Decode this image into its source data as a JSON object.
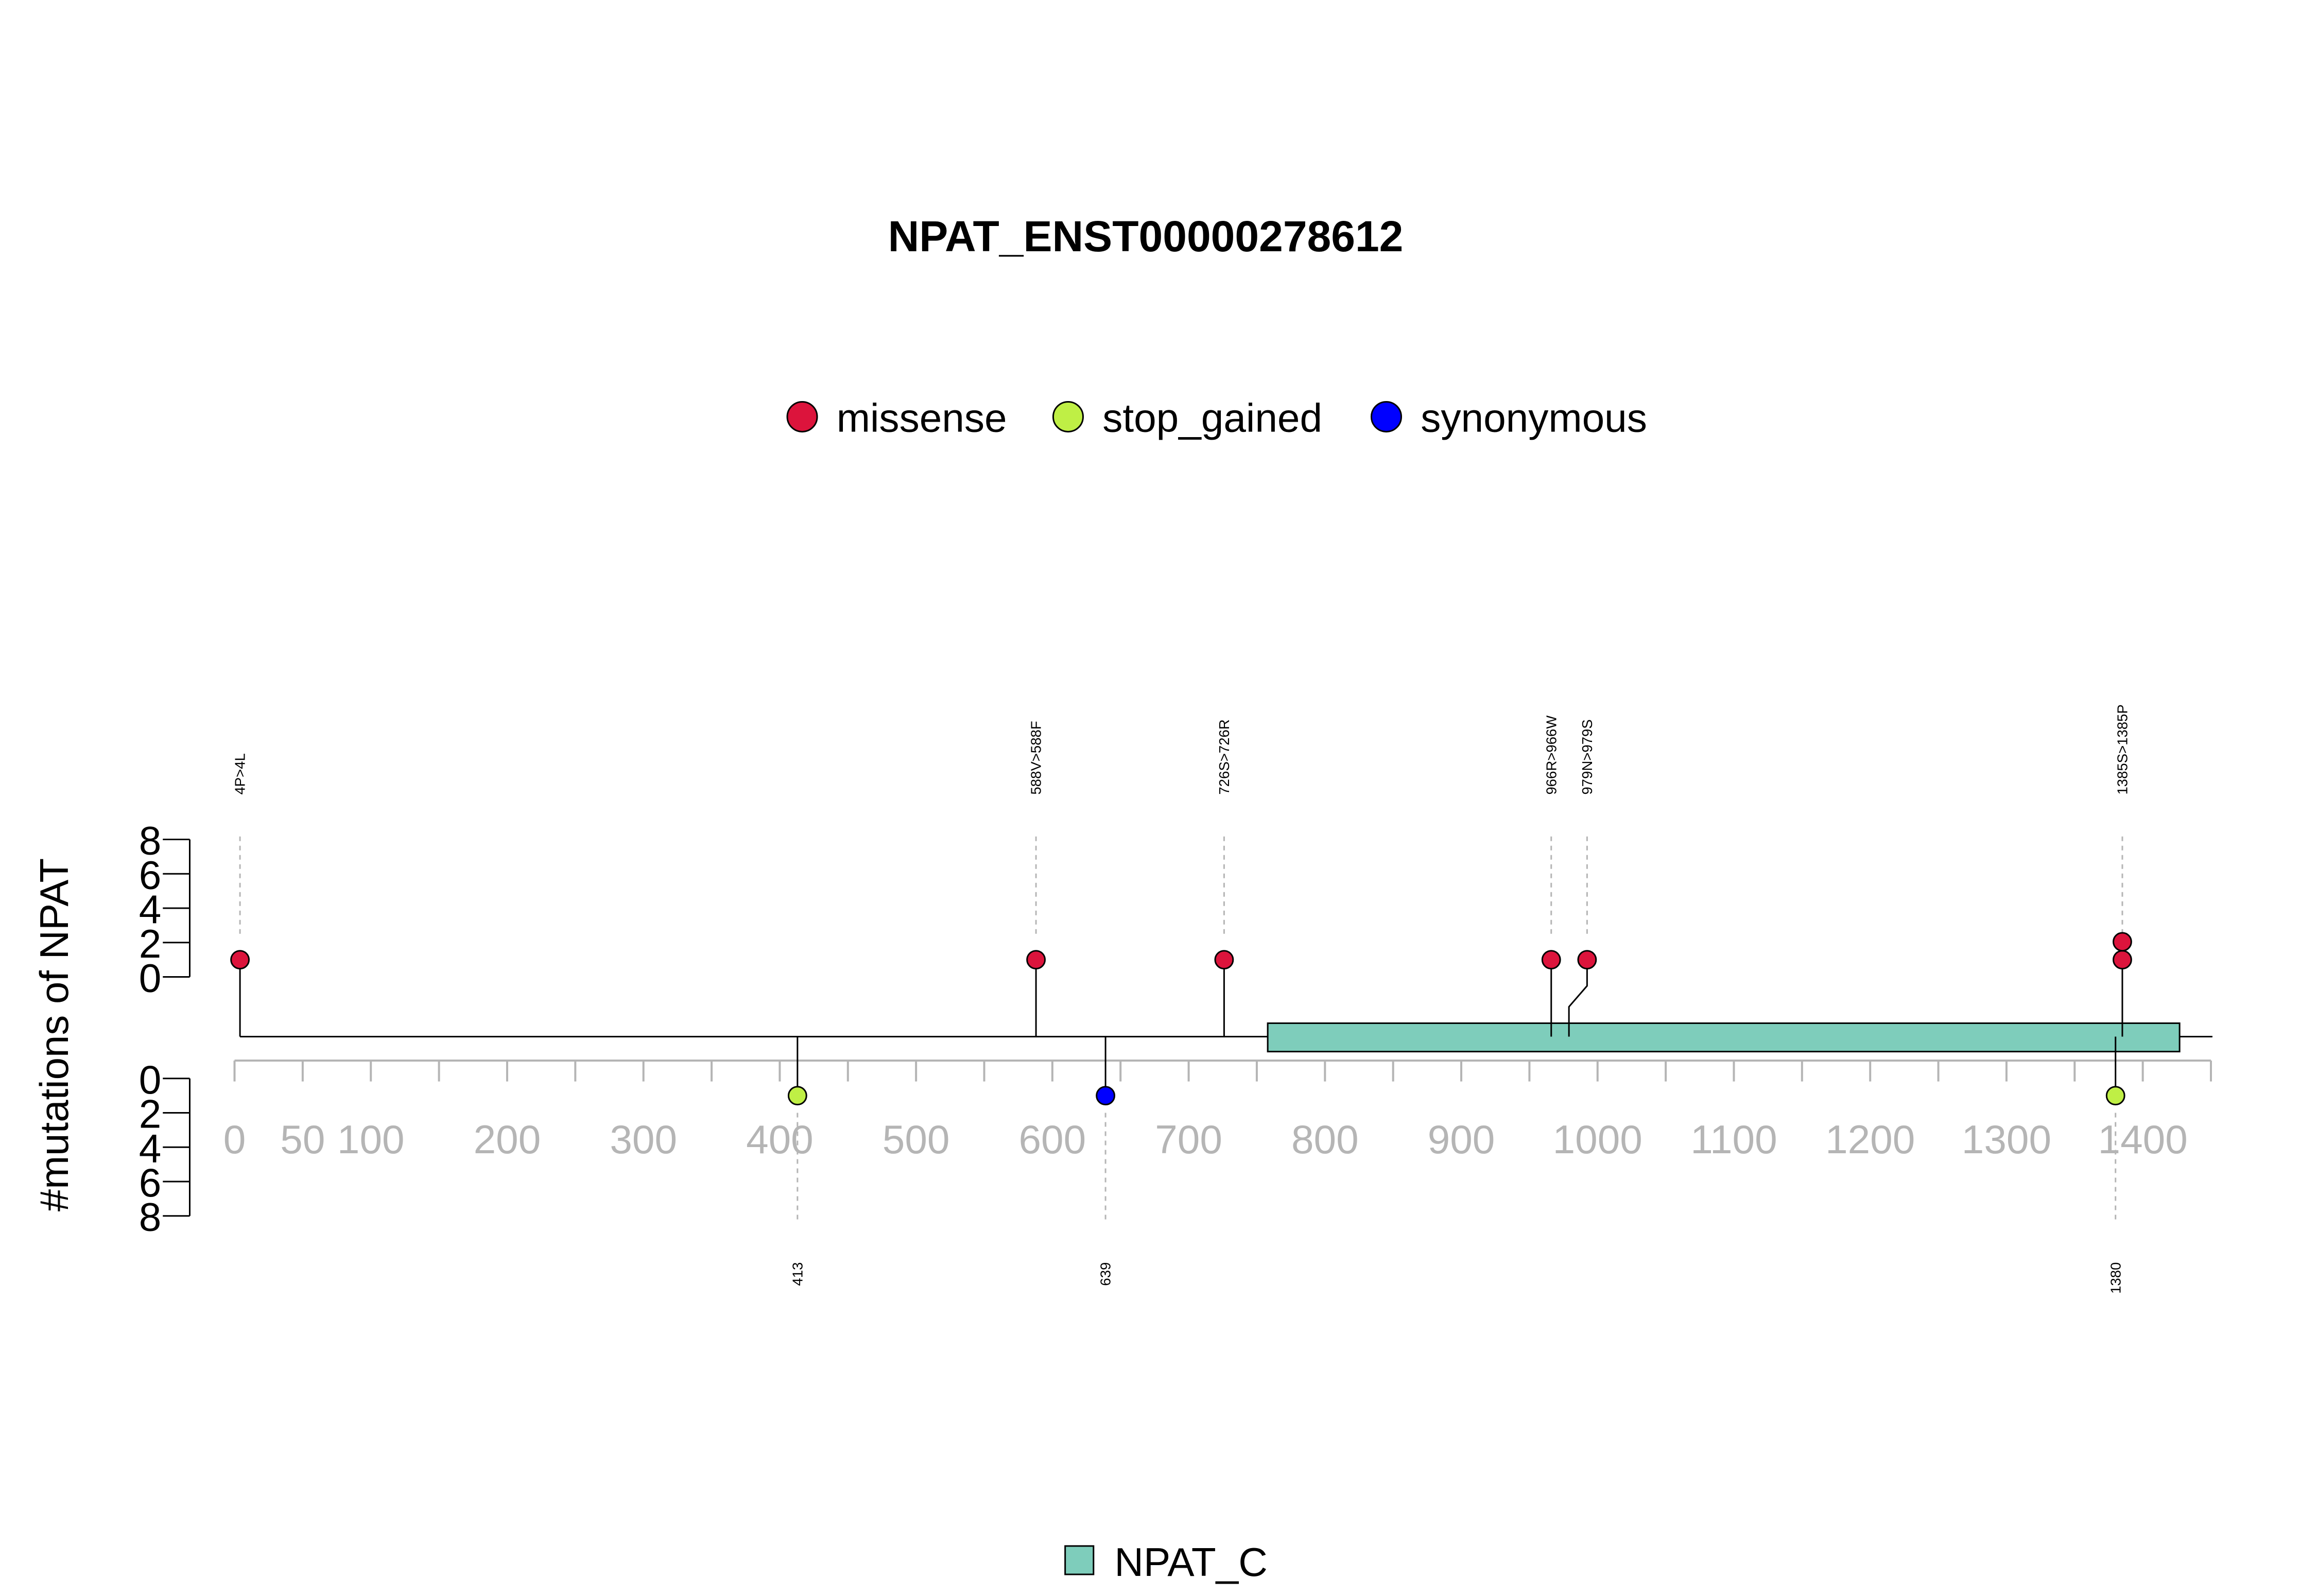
{
  "chart_data": {
    "type": "lollipop",
    "title": "NPAT_ENST00000278612",
    "ylabel": "#mutations of NPAT",
    "x_ticks": [
      0,
      50,
      100,
      200,
      300,
      400,
      500,
      600,
      700,
      800,
      900,
      1000,
      1100,
      1200,
      1300,
      1400
    ],
    "x_tick_labels": [
      "0",
      "50",
      "100",
      "200",
      "300",
      "400",
      "500",
      "600",
      "700",
      "800",
      "900",
      "1000",
      "1100",
      "1200",
      "1300",
      "1400"
    ],
    "x_minor_ticks": [
      0,
      50,
      100,
      150,
      200,
      250,
      300,
      350,
      400,
      450,
      500,
      550,
      600,
      650,
      700,
      750,
      800,
      850,
      900,
      950,
      1000,
      1050,
      1100,
      1150,
      1200,
      1250,
      1300,
      1350,
      1400,
      1450
    ],
    "xlim": [
      0,
      1450
    ],
    "y_ticks": [
      0,
      2,
      4,
      6,
      8
    ],
    "y_tick_labels": [
      "0",
      "2",
      "4",
      "6",
      "8"
    ],
    "ylim": [
      0,
      8
    ],
    "legend": [
      {
        "name": "missense",
        "color": "#DC143C"
      },
      {
        "name": "stop_gained",
        "color": "#BFEF45"
      },
      {
        "name": "synonymous",
        "color": "#0000FF"
      }
    ],
    "domains": [
      {
        "name": "NPAT_C",
        "start": 758,
        "end": 1427,
        "color": "#7ECDBB"
      }
    ],
    "upper_mutations": [
      {
        "label": "4P>4L",
        "pos": 4,
        "count": 1,
        "type": "missense"
      },
      {
        "label": "588V>588F",
        "pos": 588,
        "count": 1,
        "type": "missense"
      },
      {
        "label": "726S>726R",
        "pos": 726,
        "count": 1,
        "type": "missense"
      },
      {
        "label": "966R>966W",
        "pos": 966,
        "count": 1,
        "type": "missense"
      },
      {
        "label": "979N>979S",
        "pos": 979,
        "count": 1,
        "type": "missense"
      },
      {
        "label": "1385S>1385P",
        "pos": 1385,
        "count": 2,
        "type": "missense"
      }
    ],
    "lower_mutations": [
      {
        "label": "413",
        "pos": 413,
        "count": 1,
        "type": "stop_gained"
      },
      {
        "label": "639",
        "pos": 639,
        "count": 1,
        "type": "synonymous"
      },
      {
        "label": "1380",
        "pos": 1380,
        "count": 1,
        "type": "stop_gained"
      }
    ]
  }
}
